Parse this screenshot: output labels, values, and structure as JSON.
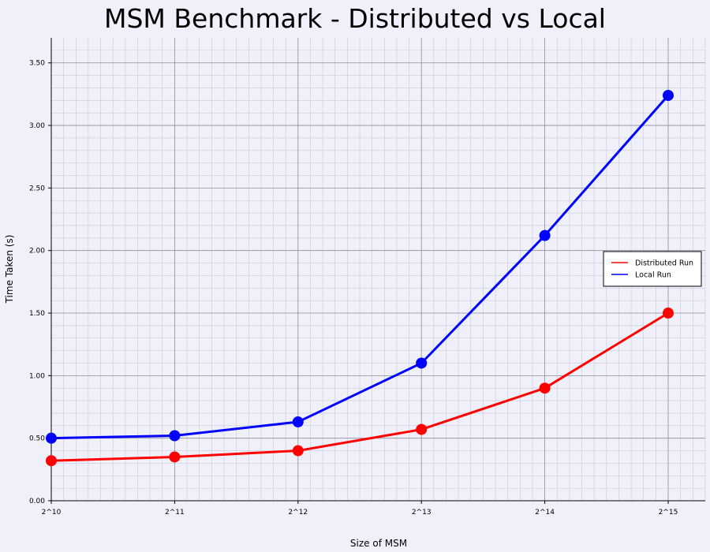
{
  "chart_data": {
    "type": "line",
    "title": "MSM Benchmark - Distributed vs Local",
    "xlabel": "Size of MSM",
    "ylabel": "Time Taken (s)",
    "categories": [
      "2^10",
      "2^11",
      "2^12",
      "2^13",
      "2^14",
      "2^15"
    ],
    "y_ticks": [
      "0.00",
      "0.50",
      "1.00",
      "1.50",
      "2.00",
      "2.50",
      "3.00",
      "3.50"
    ],
    "ylim": [
      0,
      3.7
    ],
    "grid": true,
    "legend_position": "center-right",
    "series": [
      {
        "name": "Distributed Run",
        "color": "#ff0000",
        "values": [
          0.32,
          0.35,
          0.4,
          0.57,
          0.9,
          1.5
        ]
      },
      {
        "name": "Local Run",
        "color": "#0000ff",
        "values": [
          0.5,
          0.52,
          0.63,
          1.1,
          2.12,
          3.24
        ]
      }
    ]
  }
}
